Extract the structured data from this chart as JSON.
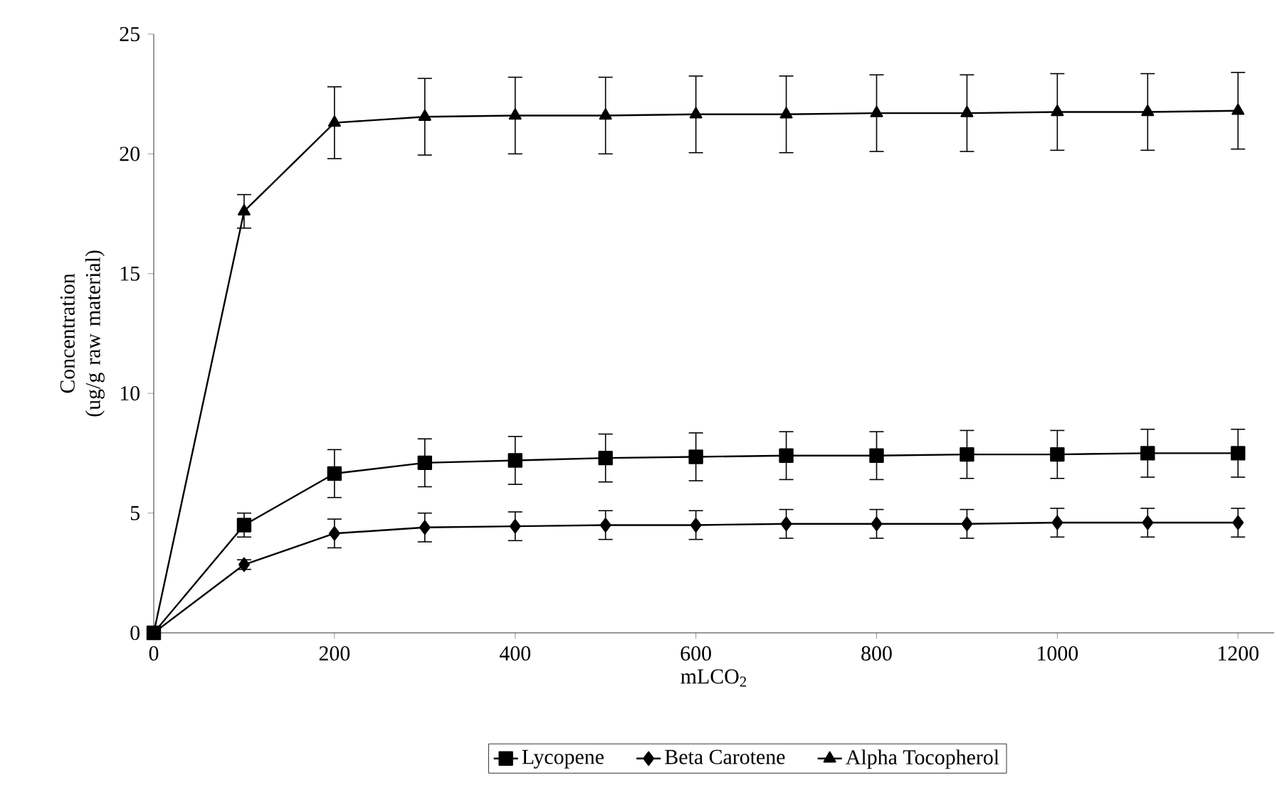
{
  "chart_data": {
    "type": "line",
    "xlabel": "mLCO$_{2}$",
    "ylabel": "Concentration (ug/g raw material)",
    "x": [
      0,
      100,
      200,
      300,
      400,
      500,
      600,
      700,
      800,
      900,
      1000,
      1100,
      1200
    ],
    "series": [
      {
        "name": "Lycopene",
        "color": "#000000",
        "marker": "square",
        "values": [
          0,
          4.5,
          6.65,
          7.1,
          7.2,
          7.3,
          7.35,
          7.4,
          7.4,
          7.45,
          7.45,
          7.5,
          7.5
        ],
        "errors": [
          0,
          0.5,
          1.0,
          1.0,
          1.0,
          1.0,
          1.0,
          1.0,
          1.0,
          1.0,
          1.0,
          1.0,
          1.0
        ]
      },
      {
        "name": "Beta Carotene",
        "color": "#000000",
        "marker": "diamond",
        "values": [
          0,
          2.85,
          4.15,
          4.4,
          4.45,
          4.5,
          4.5,
          4.55,
          4.55,
          4.55,
          4.6,
          4.6,
          4.6
        ],
        "errors": [
          0,
          0.2,
          0.6,
          0.6,
          0.6,
          0.6,
          0.6,
          0.6,
          0.6,
          0.6,
          0.6,
          0.6,
          0.6
        ]
      },
      {
        "name": "Alpha Tocopherol",
        "color": "#000000",
        "marker": "triangle",
        "values": [
          0,
          17.6,
          21.3,
          21.55,
          21.6,
          21.6,
          21.65,
          21.65,
          21.7,
          21.7,
          21.75,
          21.75,
          21.8
        ],
        "errors": [
          0,
          0.7,
          1.5,
          1.6,
          1.6,
          1.6,
          1.6,
          1.6,
          1.6,
          1.6,
          1.6,
          1.6,
          1.6
        ]
      }
    ],
    "xlim": [
      0,
      1240
    ],
    "ylim": [
      0,
      25
    ],
    "xticks": [
      0,
      200,
      400,
      600,
      800,
      1000,
      1200
    ],
    "yticks": [
      0,
      5,
      10,
      15,
      20,
      25
    ],
    "grid": false,
    "legend": "bottom",
    "line_style": "solid"
  }
}
